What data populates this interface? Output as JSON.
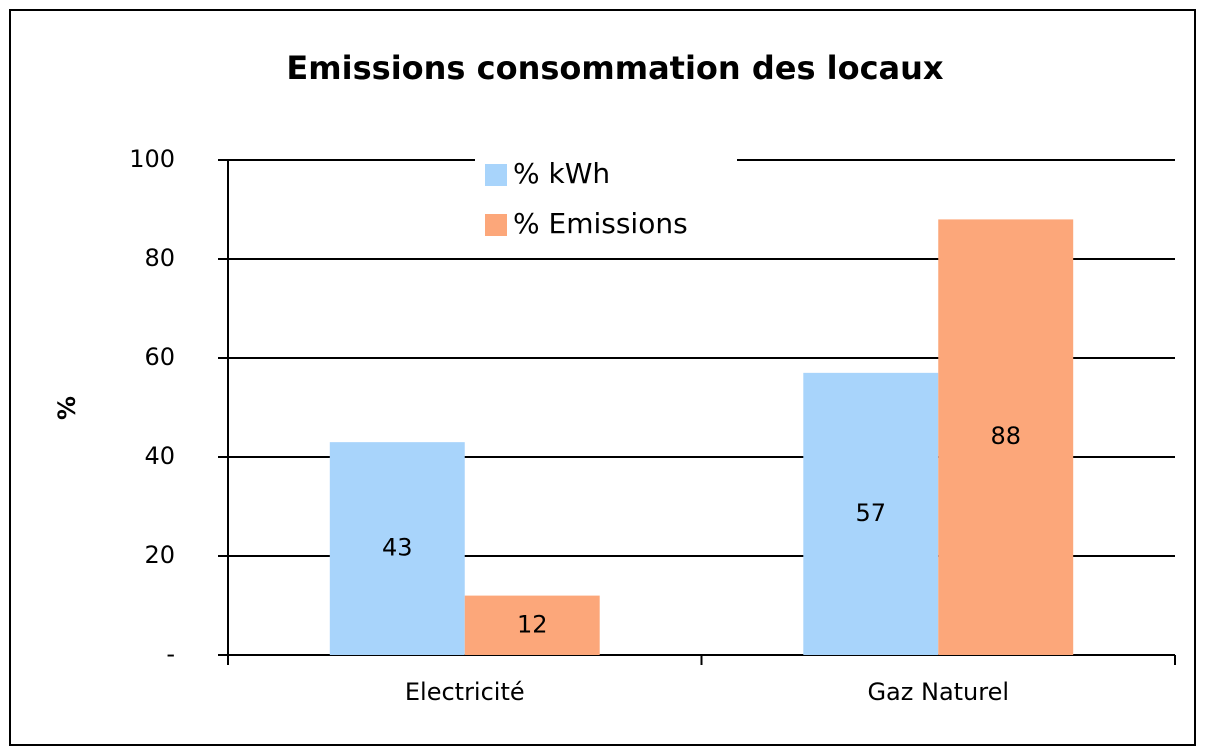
{
  "chart_data": {
    "type": "bar",
    "title": "Emissions consommation des locaux",
    "ylabel": "%",
    "categories": [
      "Electricité",
      "Gaz Naturel"
    ],
    "series": [
      {
        "name": "% kWh",
        "color": "#a8d4fb",
        "values": [
          43,
          57
        ]
      },
      {
        "name": "% Emissions",
        "color": "#fca77a",
        "values": [
          12,
          88
        ]
      }
    ],
    "ylim": [
      0,
      100
    ],
    "yticks": [
      {
        "value": 0,
        "label": "-"
      },
      20,
      40,
      60,
      80,
      100
    ],
    "grid": true,
    "legend": "top"
  }
}
